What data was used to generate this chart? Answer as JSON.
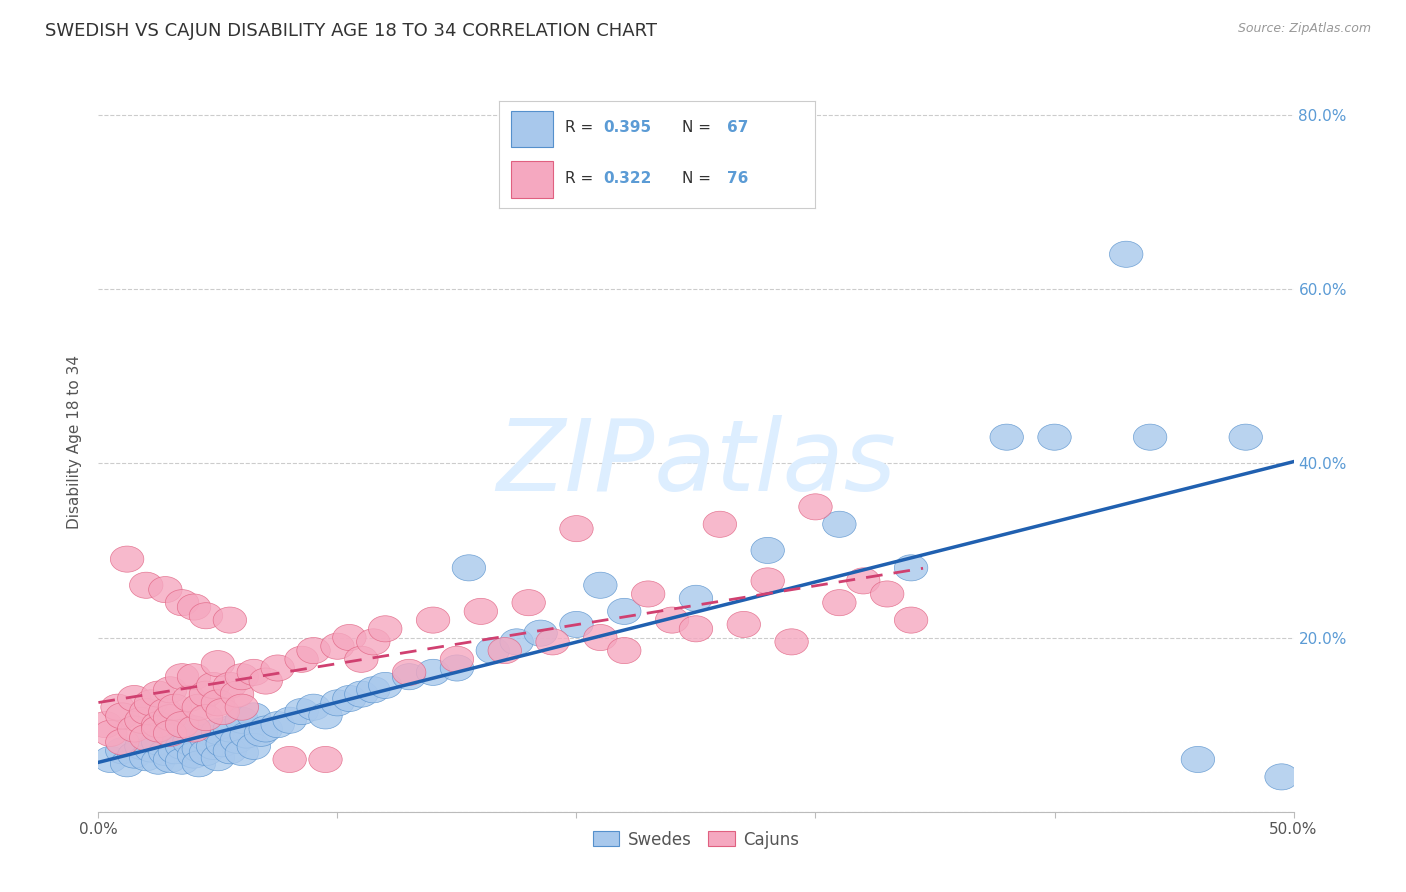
{
  "title": "SWEDISH VS CAJUN DISABILITY AGE 18 TO 34 CORRELATION CHART",
  "source": "Source: ZipAtlas.com",
  "ylabel": "Disability Age 18 to 34",
  "xlim": [
    0.0,
    0.5
  ],
  "ylim": [
    0.0,
    0.85
  ],
  "xticks": [
    0.0,
    0.1,
    0.2,
    0.3,
    0.4,
    0.5
  ],
  "xticklabels": [
    "0.0%",
    "",
    "",
    "",
    "",
    "50.0%"
  ],
  "yticks": [
    0.0,
    0.2,
    0.4,
    0.6,
    0.8
  ],
  "yticklabels": [
    "",
    "20.0%",
    "40.0%",
    "60.0%",
    "80.0%"
  ],
  "blue_color": "#A8C8EC",
  "pink_color": "#F5A8C0",
  "blue_edge_color": "#5590CC",
  "pink_edge_color": "#E06080",
  "blue_line_color": "#2060B0",
  "pink_line_color": "#D04070",
  "tick_label_color": "#5B9BD5",
  "title_color": "#333333",
  "source_color": "#999999",
  "ylabel_color": "#555555",
  "grid_color": "#CCCCCC",
  "background_color": "#FFFFFF",
  "watermark_color": "#DDEEFF",
  "blue_scatter_x": [
    0.005,
    0.01,
    0.012,
    0.015,
    0.018,
    0.02,
    0.022,
    0.025,
    0.025,
    0.028,
    0.03,
    0.03,
    0.032,
    0.035,
    0.035,
    0.038,
    0.04,
    0.04,
    0.042,
    0.042,
    0.045,
    0.045,
    0.048,
    0.05,
    0.05,
    0.052,
    0.055,
    0.055,
    0.058,
    0.06,
    0.06,
    0.062,
    0.065,
    0.065,
    0.068,
    0.07,
    0.075,
    0.08,
    0.085,
    0.09,
    0.095,
    0.1,
    0.105,
    0.11,
    0.115,
    0.12,
    0.13,
    0.14,
    0.15,
    0.155,
    0.165,
    0.175,
    0.185,
    0.2,
    0.21,
    0.22,
    0.25,
    0.28,
    0.31,
    0.34,
    0.38,
    0.4,
    0.43,
    0.44,
    0.46,
    0.48,
    0.495
  ],
  "blue_scatter_y": [
    0.06,
    0.07,
    0.055,
    0.065,
    0.075,
    0.062,
    0.072,
    0.058,
    0.08,
    0.068,
    0.06,
    0.09,
    0.07,
    0.075,
    0.058,
    0.08,
    0.065,
    0.095,
    0.072,
    0.055,
    0.085,
    0.068,
    0.075,
    0.062,
    0.092,
    0.078,
    0.07,
    0.095,
    0.082,
    0.068,
    0.105,
    0.088,
    0.075,
    0.11,
    0.09,
    0.095,
    0.1,
    0.105,
    0.115,
    0.12,
    0.11,
    0.125,
    0.13,
    0.135,
    0.14,
    0.145,
    0.155,
    0.16,
    0.165,
    0.28,
    0.185,
    0.195,
    0.205,
    0.215,
    0.26,
    0.23,
    0.245,
    0.3,
    0.33,
    0.28,
    0.43,
    0.43,
    0.64,
    0.43,
    0.06,
    0.43,
    0.04
  ],
  "pink_scatter_x": [
    0.003,
    0.005,
    0.008,
    0.01,
    0.01,
    0.012,
    0.015,
    0.015,
    0.018,
    0.02,
    0.02,
    0.02,
    0.022,
    0.025,
    0.025,
    0.025,
    0.028,
    0.028,
    0.03,
    0.03,
    0.03,
    0.032,
    0.035,
    0.035,
    0.035,
    0.038,
    0.04,
    0.04,
    0.04,
    0.042,
    0.045,
    0.045,
    0.045,
    0.048,
    0.05,
    0.05,
    0.052,
    0.055,
    0.055,
    0.058,
    0.06,
    0.06,
    0.065,
    0.07,
    0.075,
    0.08,
    0.085,
    0.09,
    0.095,
    0.1,
    0.105,
    0.11,
    0.115,
    0.12,
    0.13,
    0.14,
    0.15,
    0.16,
    0.17,
    0.18,
    0.19,
    0.2,
    0.21,
    0.22,
    0.23,
    0.24,
    0.25,
    0.26,
    0.27,
    0.28,
    0.29,
    0.3,
    0.31,
    0.32,
    0.33,
    0.34
  ],
  "pink_scatter_y": [
    0.1,
    0.09,
    0.12,
    0.08,
    0.11,
    0.29,
    0.095,
    0.13,
    0.105,
    0.085,
    0.115,
    0.26,
    0.125,
    0.1,
    0.135,
    0.095,
    0.115,
    0.255,
    0.108,
    0.09,
    0.14,
    0.12,
    0.155,
    0.1,
    0.24,
    0.13,
    0.095,
    0.155,
    0.235,
    0.12,
    0.135,
    0.108,
    0.225,
    0.145,
    0.125,
    0.17,
    0.115,
    0.145,
    0.22,
    0.135,
    0.155,
    0.12,
    0.16,
    0.15,
    0.165,
    0.06,
    0.175,
    0.185,
    0.06,
    0.19,
    0.2,
    0.175,
    0.195,
    0.21,
    0.16,
    0.22,
    0.175,
    0.23,
    0.185,
    0.24,
    0.195,
    0.325,
    0.2,
    0.185,
    0.25,
    0.22,
    0.21,
    0.33,
    0.215,
    0.265,
    0.195,
    0.35,
    0.24,
    0.265,
    0.25,
    0.22
  ],
  "legend_blue_label": "R = 0.395   N = 67",
  "legend_pink_label": "R = 0.322   N = 76",
  "swedes_label": "Swedes",
  "cajuns_label": "Cajuns",
  "title_fontsize": 13,
  "source_fontsize": 9,
  "tick_fontsize": 11,
  "ylabel_fontsize": 11,
  "legend_fontsize": 12,
  "watermark_fontsize": 72
}
